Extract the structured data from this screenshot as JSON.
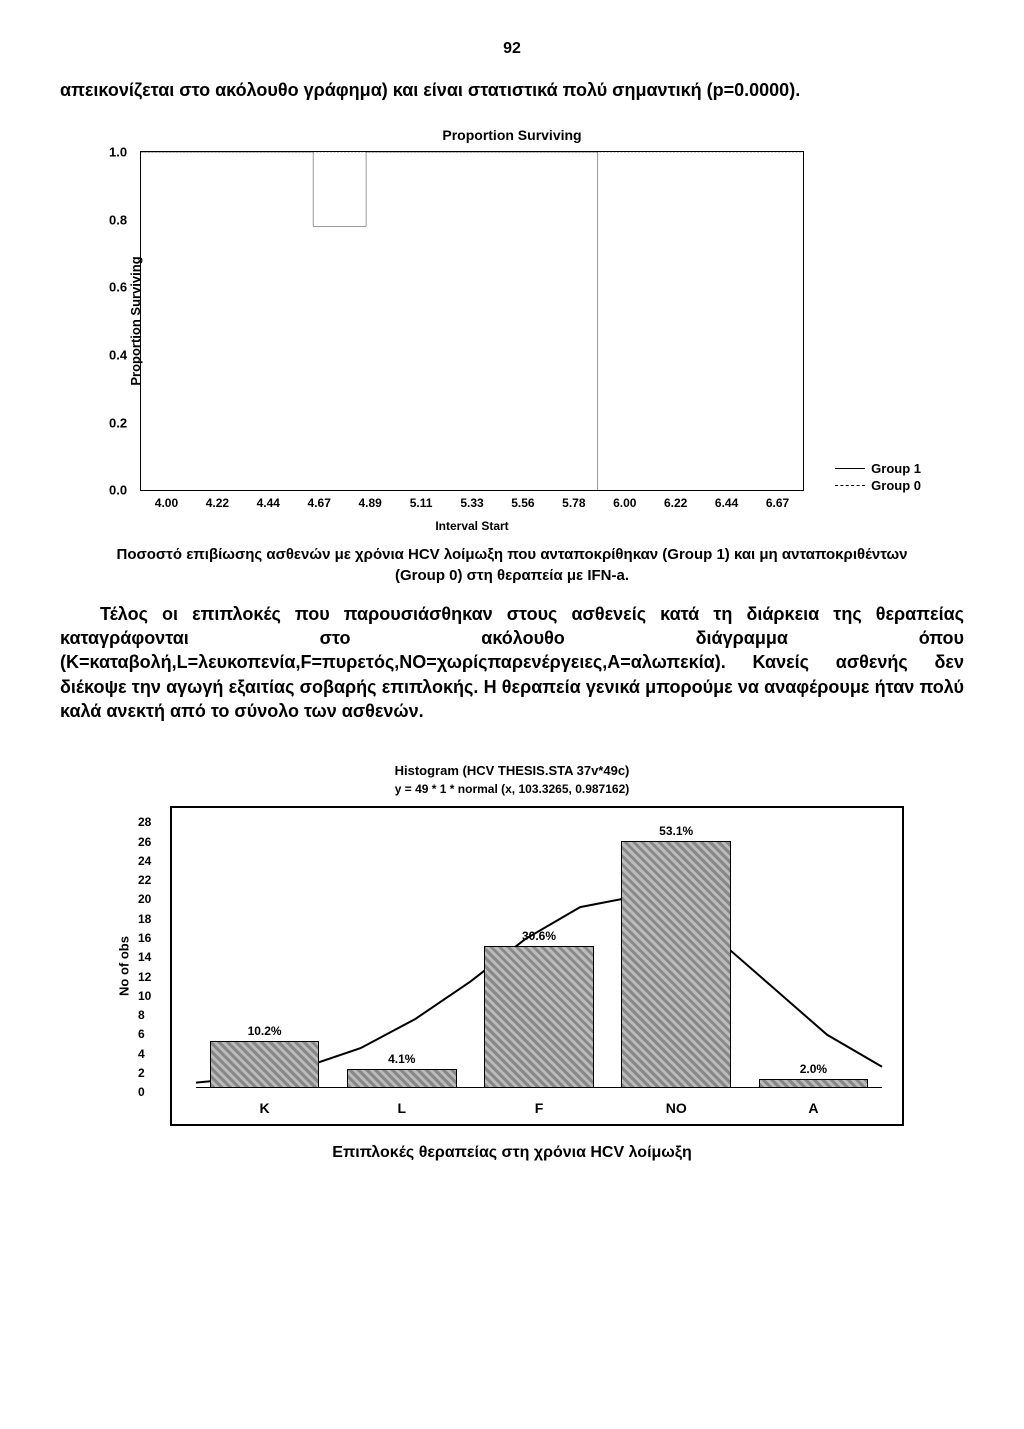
{
  "page_number": "92",
  "intro_text": "απεικονίζεται στο ακόλουθο γράφημα) και είναι στατιστικά πολύ σημαντική (p=0.0000).",
  "survival_chart": {
    "title": "Proportion Surviving",
    "y_label": "Proportion Surviving",
    "y_ticks": [
      "1.0",
      "0.8",
      "0.6",
      "0.4",
      "0.2",
      "0.0"
    ],
    "ylim": [
      0,
      1
    ],
    "x_ticks": [
      "4.00",
      "4.22",
      "4.44",
      "4.67",
      "4.89",
      "5.11",
      "5.33",
      "5.56",
      "5.78",
      "6.00",
      "6.22",
      "6.44",
      "6.67"
    ],
    "x_axis_title": "Interval Start",
    "group1": {
      "label": "Group 1",
      "style": "solid",
      "points": [
        [
          0,
          1.0
        ],
        [
          0.26,
          1.0
        ],
        [
          0.26,
          0.78
        ],
        [
          0.34,
          0.78
        ],
        [
          0.34,
          1.0
        ],
        [
          0.69,
          1.0
        ],
        [
          0.69,
          0.0
        ]
      ]
    },
    "group0": {
      "label": "Group 0",
      "style": "dashed",
      "points": [
        [
          0,
          1.0
        ],
        [
          1.0,
          1.0
        ]
      ]
    },
    "line_color": "#000000",
    "background": "#ffffff"
  },
  "survival_caption": "Ποσοστό επιβίωσης ασθενών με χρόνια HCV λοίμωξη που ανταποκρίθηκαν (Group 1) και μη ανταποκριθέντων (Group 0) στη θεραπεία με IFN-a.",
  "body_text": "Τέλος οι επιπλοκές που παρουσιάσθηκαν στους ασθενείς κατά τη διάρκεια της θεραπείας καταγράφονται στο ακόλουθο διάγραμμα όπου (K=καταβολή,L=λευκοπενία,F=πυρετός,NO=χωρίςπαρενέργειες,A=αλωπεκία). Κανείς ασθενής δεν διέκοψε την αγωγή εξαιτίας σοβαρής επιπλοκής. Η θεραπεία γενικά μπορούμε να αναφέρουμε ήταν πολύ καλά ανεκτή από το σύνολο των ασθενών.",
  "histogram": {
    "title": "Histogram (HCV THESIS.STA 37v*49c)",
    "subtitle": "y = 49 * 1 * normal (x, 103.3265, 0.987162)",
    "y_label": "No of obs",
    "y_ticks": [
      0,
      2,
      4,
      6,
      8,
      10,
      12,
      14,
      16,
      18,
      20,
      22,
      24,
      26,
      28
    ],
    "ymax": 28,
    "categories": [
      "K",
      "L",
      "F",
      "NO",
      "A"
    ],
    "values": [
      5,
      2,
      15,
      26,
      1
    ],
    "percent_labels": [
      "10.2%",
      "4.1%",
      "30.6%",
      "53.1%",
      "2.0%"
    ],
    "bar_fill": "#a0a0a0",
    "bar_border": "#000000",
    "curve_color": "#000000",
    "background": "#ffffff",
    "curve": [
      [
        0.0,
        0.02
      ],
      [
        0.08,
        0.04
      ],
      [
        0.16,
        0.08
      ],
      [
        0.24,
        0.15
      ],
      [
        0.32,
        0.26
      ],
      [
        0.4,
        0.4
      ],
      [
        0.48,
        0.56
      ],
      [
        0.56,
        0.68
      ],
      [
        0.62,
        0.71
      ],
      [
        0.68,
        0.68
      ],
      [
        0.76,
        0.56
      ],
      [
        0.84,
        0.38
      ],
      [
        0.92,
        0.2
      ],
      [
        1.0,
        0.08
      ]
    ]
  },
  "histogram_caption": "Επιπλοκές θεραπείας στη χρόνια HCV λοίμωξη"
}
